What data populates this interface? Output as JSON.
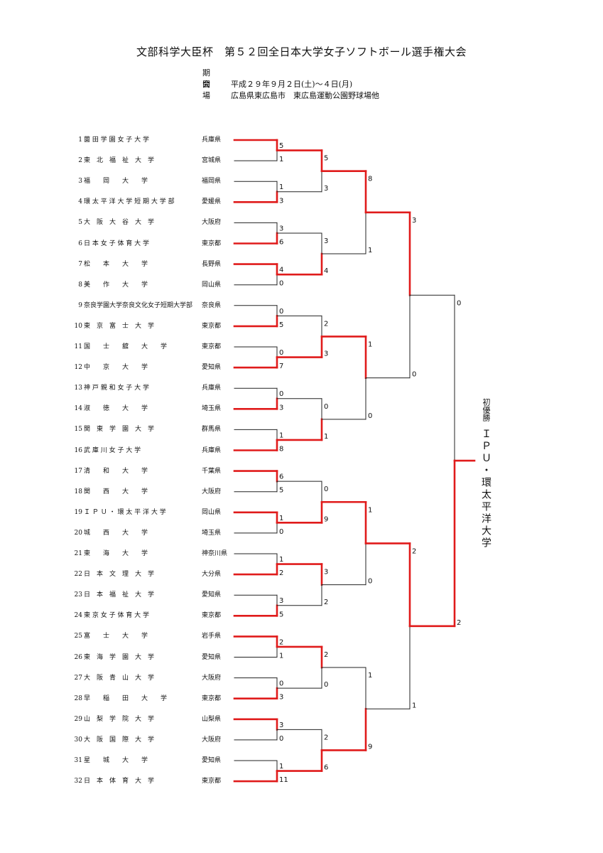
{
  "header": {
    "title": "文部科学大臣杯　第５２回全日本大学女子ソフトボール選手権大会",
    "period_label": "期間",
    "period_value": "平成２９年９月２日(土)～４日(月)",
    "venue_label": "会場",
    "venue_value": "広島県東広島市　東広島運動公園野球場他"
  },
  "colors": {
    "winner_line": "#e01b1b",
    "loser_line": "#222222"
  },
  "teams": [
    {
      "num": "1",
      "name": "薗 田 学 園 女 子 大 学",
      "pref": "兵庫県"
    },
    {
      "num": "2",
      "name": "東　北　福　祉　大　学",
      "pref": "宮城県"
    },
    {
      "num": "3",
      "name": "福　　岡　　大　　学",
      "pref": "福岡県"
    },
    {
      "num": "4",
      "name": "環 太 平 洋 大 学 短 期 大 学 部",
      "pref": "愛媛県"
    },
    {
      "num": "5",
      "name": "大　阪　大　谷　大　学",
      "pref": "大阪府"
    },
    {
      "num": "6",
      "name": "日 本 女 子 体 育 大 学",
      "pref": "東京都"
    },
    {
      "num": "7",
      "name": "松　　本　　大　　学",
      "pref": "長野県"
    },
    {
      "num": "8",
      "name": "美　　作　　大　　学",
      "pref": "岡山県"
    },
    {
      "num": "9",
      "name": "奈良学園大学奈良文化女子短期大学部",
      "pref": "奈良県"
    },
    {
      "num": "10",
      "name": "東　京　富　士　大　学",
      "pref": "東京都"
    },
    {
      "num": "11",
      "name": "国　　士　　舘　　大　　学",
      "pref": "東京都"
    },
    {
      "num": "12",
      "name": "中　　京　　大　　学",
      "pref": "愛知県"
    },
    {
      "num": "13",
      "name": "神 戸 親 和 女 子 大 学",
      "pref": "兵庫県"
    },
    {
      "num": "14",
      "name": "淑　　徳　　大　　学",
      "pref": "埼玉県"
    },
    {
      "num": "15",
      "name": "関　東　学　園　大　学",
      "pref": "群馬県"
    },
    {
      "num": "16",
      "name": "武 庫 川 女 子 大 学",
      "pref": "兵庫県"
    },
    {
      "num": "17",
      "name": "清　　和　　大　　学",
      "pref": "千葉県"
    },
    {
      "num": "18",
      "name": "関　　西　　大　　学",
      "pref": "大阪府"
    },
    {
      "num": "19",
      "name": "Ｉ Ｐ Ｕ ・ 環 太 平 洋 大 学",
      "pref": "岡山県"
    },
    {
      "num": "20",
      "name": "城　　西　　大　　学",
      "pref": "埼玉県"
    },
    {
      "num": "21",
      "name": "東　　海　　大　　学",
      "pref": "神奈川県"
    },
    {
      "num": "22",
      "name": "日　本　文　理　大　学",
      "pref": "大分県"
    },
    {
      "num": "23",
      "name": "日　本　福　祉　大　学",
      "pref": "愛知県"
    },
    {
      "num": "24",
      "name": "東 京 女 子 体 育 大 学",
      "pref": "東京都"
    },
    {
      "num": "25",
      "name": "富　　士　　大　　学",
      "pref": "岩手県"
    },
    {
      "num": "26",
      "name": "東　海　学　園　大　学",
      "pref": "愛知県"
    },
    {
      "num": "27",
      "name": "大　阪　青　山　大　学",
      "pref": "大阪府"
    },
    {
      "num": "28",
      "name": "早　　稲　　田　　大　　学",
      "pref": "東京都"
    },
    {
      "num": "29",
      "name": "山　梨　学　院　大　学",
      "pref": "山梨県"
    },
    {
      "num": "30",
      "name": "大　阪　国　際　大　学",
      "pref": "大阪府"
    },
    {
      "num": "31",
      "name": "星　　城　　大　　学",
      "pref": "愛知県"
    },
    {
      "num": "32",
      "name": "日　本　体　育　大　学",
      "pref": "東京都"
    }
  ],
  "rounds": [
    [
      {
        "scores": [
          "5",
          "1"
        ],
        "winner": 0
      },
      {
        "scores": [
          "1",
          "3"
        ],
        "winner": 1
      },
      {
        "scores": [
          "3",
          "6"
        ],
        "winner": 1
      },
      {
        "scores": [
          "4",
          "0"
        ],
        "winner": 0
      },
      {
        "scores": [
          "0",
          "5"
        ],
        "winner": 1
      },
      {
        "scores": [
          "0",
          "7"
        ],
        "winner": 1
      },
      {
        "scores": [
          "0",
          "3"
        ],
        "winner": 1
      },
      {
        "scores": [
          "1",
          "8"
        ],
        "winner": 1
      },
      {
        "scores": [
          "6",
          "5"
        ],
        "winner": 0
      },
      {
        "scores": [
          "1",
          "0"
        ],
        "winner": 0
      },
      {
        "scores": [
          "1",
          "2"
        ],
        "winner": 1
      },
      {
        "scores": [
          "3",
          "5"
        ],
        "winner": 1
      },
      {
        "scores": [
          "2",
          "1"
        ],
        "winner": 0
      },
      {
        "scores": [
          "0",
          "3"
        ],
        "winner": 1
      },
      {
        "scores": [
          "3",
          "0"
        ],
        "winner": 0
      },
      {
        "scores": [
          "1",
          "11"
        ],
        "winner": 1
      }
    ],
    [
      {
        "scores": [
          "5",
          "3"
        ],
        "winner": 0
      },
      {
        "scores": [
          "3",
          "4"
        ],
        "winner": 1
      },
      {
        "scores": [
          "2",
          "3"
        ],
        "winner": 1
      },
      {
        "scores": [
          "0",
          "1"
        ],
        "winner": 1
      },
      {
        "scores": [
          "0",
          "9"
        ],
        "winner": 1
      },
      {
        "scores": [
          "3",
          "2"
        ],
        "winner": 0
      },
      {
        "scores": [
          "2",
          "0"
        ],
        "winner": 0
      },
      {
        "scores": [
          "2",
          "6"
        ],
        "winner": 1
      }
    ],
    [
      {
        "scores": [
          "8",
          "1"
        ],
        "winner": 0
      },
      {
        "scores": [
          "1",
          "0"
        ],
        "winner": 0
      },
      {
        "scores": [
          "1",
          "0"
        ],
        "winner": 0
      },
      {
        "scores": [
          "1",
          "9"
        ],
        "winner": 1
      }
    ],
    [
      {
        "scores": [
          "3",
          "0"
        ],
        "winner": 0
      },
      {
        "scores": [
          "2",
          "1"
        ],
        "winner": 0
      }
    ],
    [
      {
        "scores": [
          "0",
          "2"
        ],
        "winner": 1
      }
    ]
  ],
  "champion": {
    "label": "初優勝",
    "name": "ＩＰＵ・環太平洋大学"
  }
}
